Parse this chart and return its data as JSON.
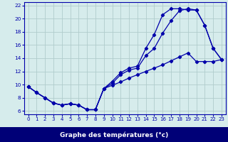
{
  "xlabel": "Graphe des températures (°c)",
  "xlim_min": -0.5,
  "xlim_max": 23.5,
  "ylim_min": 5.5,
  "ylim_max": 22.5,
  "xticks": [
    0,
    1,
    2,
    3,
    4,
    5,
    6,
    7,
    8,
    9,
    10,
    11,
    12,
    13,
    14,
    15,
    16,
    17,
    18,
    19,
    20,
    21,
    22,
    23
  ],
  "yticks": [
    6,
    8,
    10,
    12,
    14,
    16,
    18,
    20,
    22
  ],
  "bg_color": "#d6ecec",
  "grid_color": "#b0cccc",
  "line_color": "#0000aa",
  "line1_x": [
    0,
    1,
    2,
    3,
    4,
    5,
    6,
    7,
    8,
    9,
    10,
    11,
    12,
    13,
    14,
    15,
    16,
    17,
    18,
    19,
    20,
    21,
    22,
    23
  ],
  "line1_y": [
    9.7,
    8.8,
    8.0,
    7.2,
    6.9,
    7.1,
    6.9,
    6.2,
    6.2,
    9.4,
    10.5,
    11.8,
    12.5,
    12.8,
    15.5,
    17.6,
    20.6,
    21.5,
    21.5,
    21.3,
    21.3,
    19.0,
    15.5,
    13.8
  ],
  "line2_x": [
    0,
    1,
    2,
    3,
    4,
    5,
    6,
    7,
    8,
    9,
    10,
    11,
    12,
    13,
    14,
    15,
    16,
    17,
    18,
    19,
    20,
    21,
    22,
    23
  ],
  "line2_y": [
    9.7,
    8.8,
    8.0,
    7.2,
    6.9,
    7.1,
    6.9,
    6.2,
    6.2,
    9.4,
    10.2,
    11.5,
    12.2,
    12.5,
    14.4,
    15.5,
    17.8,
    19.7,
    21.2,
    21.5,
    21.3,
    19.0,
    15.5,
    13.8
  ],
  "line3_x": [
    0,
    1,
    2,
    3,
    4,
    5,
    6,
    7,
    8,
    9,
    10,
    11,
    12,
    13,
    14,
    15,
    16,
    17,
    18,
    19,
    20,
    21,
    22,
    23
  ],
  "line3_y": [
    9.7,
    8.8,
    8.0,
    7.2,
    6.9,
    7.1,
    6.9,
    6.2,
    6.2,
    9.4,
    9.9,
    10.4,
    11.0,
    11.5,
    12.0,
    12.5,
    13.0,
    13.6,
    14.2,
    14.8,
    13.5,
    13.5,
    13.5,
    13.8
  ],
  "bottom_bar_color": "#000077",
  "xlabel_color": "#ffffff",
  "xlabel_fontsize": 6.5,
  "tick_fontsize": 5.0,
  "tick_color": "#0000aa"
}
